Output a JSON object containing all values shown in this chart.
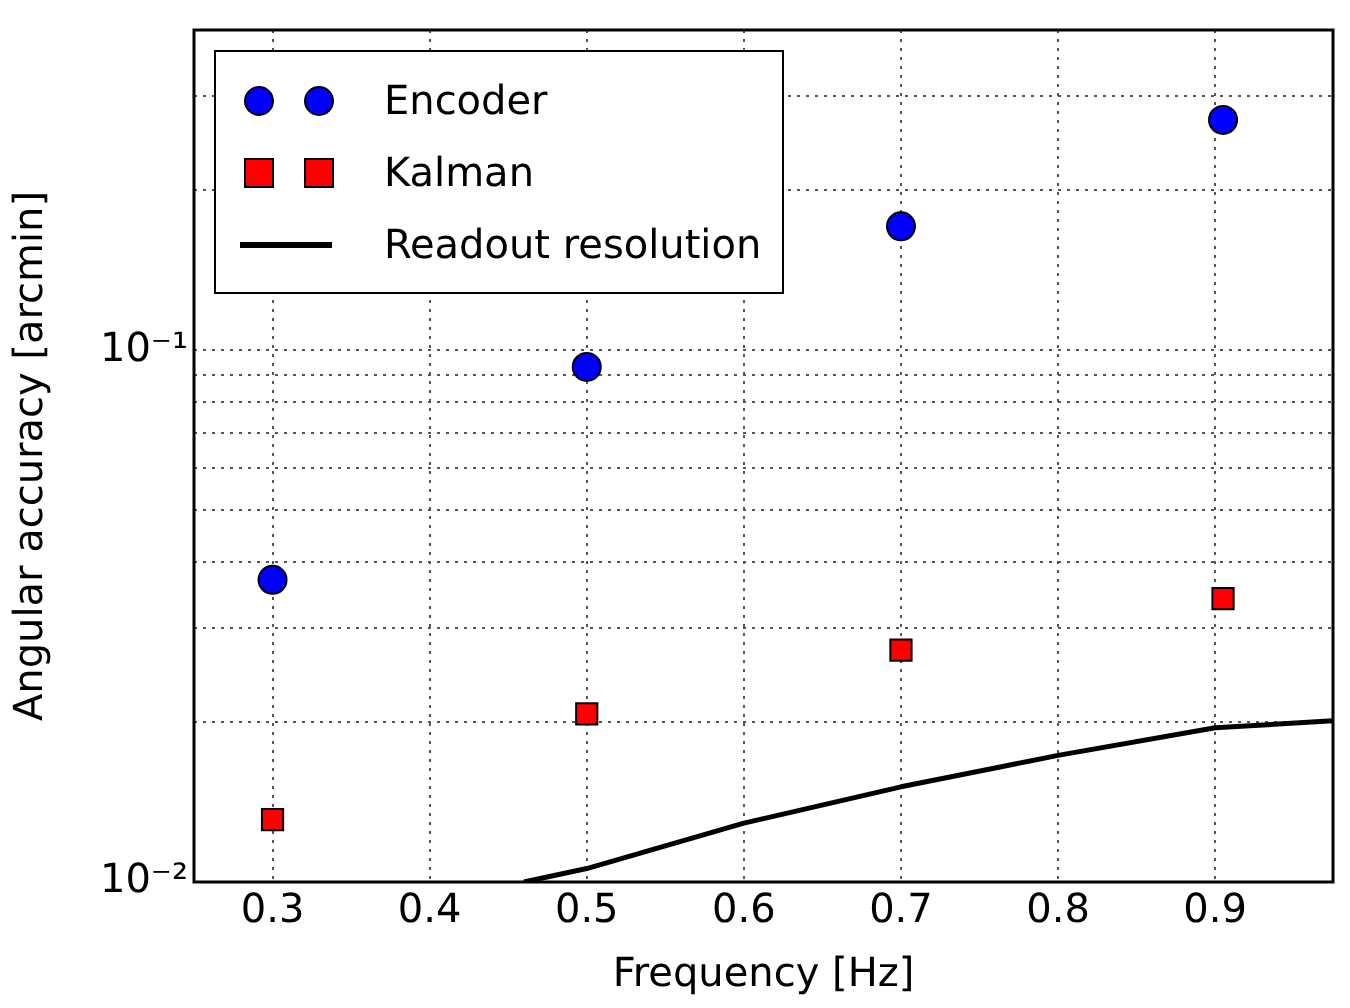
{
  "chart_data": {
    "type": "scatter",
    "xlabel": "Frequency [Hz]",
    "ylabel": "Angular accuracy [arcmin]",
    "log": "y",
    "grid": true,
    "legend": "top left",
    "xlim": [
      0.25,
      0.975
    ],
    "xticks": [
      0.3,
      0.4,
      0.5,
      0.6,
      0.7,
      0.8,
      0.9
    ],
    "ylim": [
      0.01,
      0.4
    ],
    "yticks": [
      {
        "value": 0.01,
        "label": "10⁻²"
      },
      {
        "value": 0.02,
        "label": null
      },
      {
        "value": 0.03,
        "label": null
      },
      {
        "value": 0.04,
        "label": null
      },
      {
        "value": 0.05,
        "label": null
      },
      {
        "value": 0.06,
        "label": null
      },
      {
        "value": 0.07,
        "label": null
      },
      {
        "value": 0.08,
        "label": null
      },
      {
        "value": 0.09,
        "label": null
      },
      {
        "value": 0.1,
        "label": "10⁻¹"
      },
      {
        "value": 0.2,
        "label": null
      },
      {
        "value": 0.3,
        "label": null
      },
      {
        "value": 0.4,
        "label": null
      }
    ],
    "x": [
      0.3,
      0.5,
      0.7,
      0.905
    ],
    "series": [
      {
        "name": "Encoder",
        "color": "#0000ff",
        "marker": "circle",
        "values": [
          0.037,
          0.093,
          0.171,
          0.271
        ]
      },
      {
        "name": "Kalman",
        "color": "#ff0000",
        "marker": "square",
        "values": [
          0.0131,
          0.0207,
          0.0273,
          0.0341
        ]
      },
      {
        "name": "Readout resolution",
        "type": "line",
        "color": "#000000",
        "marker": "none",
        "x": [
          0.46,
          0.5,
          0.6,
          0.7,
          0.8,
          0.9,
          0.975
        ],
        "values": [
          0.01,
          0.0106,
          0.0129,
          0.0151,
          0.0173,
          0.0195,
          0.0201
        ]
      }
    ]
  }
}
